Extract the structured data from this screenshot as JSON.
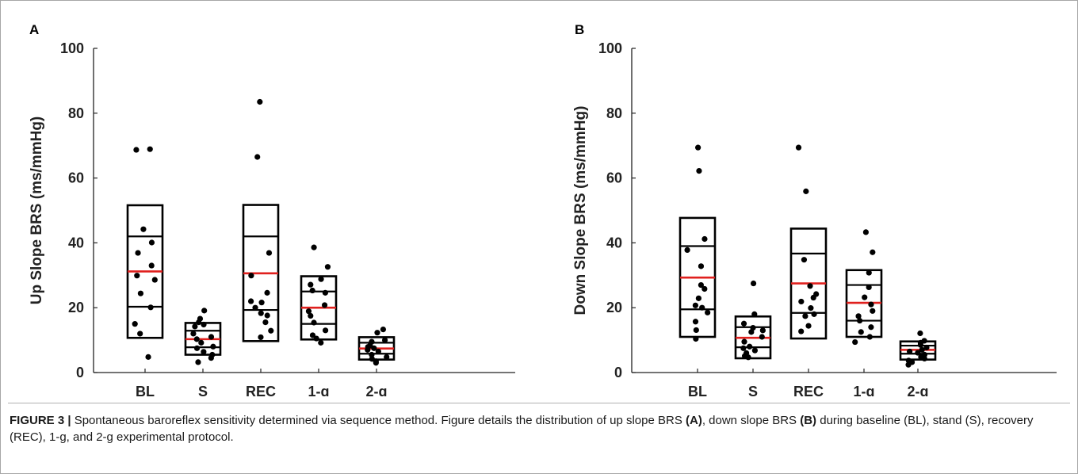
{
  "chart_data": [
    {
      "type": "scatter",
      "panel": "A",
      "ylabel": "Up Slope BRS (ms/mmHg)",
      "xlabel": "",
      "title": "",
      "ylim": [
        0,
        100
      ],
      "yticks": [
        "0",
        "20",
        "40",
        "60",
        "80",
        "100"
      ],
      "categories": [
        "BL",
        "S",
        "REC",
        "1-g",
        "2-g"
      ],
      "boxes": [
        {
          "category": "BL",
          "bottom": 10.7,
          "q1": 20.3,
          "mean": 31.2,
          "q3": 42.0,
          "top": 51.6
        },
        {
          "category": "S",
          "bottom": 5.5,
          "q1": 7.8,
          "mean": 10.3,
          "q3": 12.9,
          "top": 15.3
        },
        {
          "category": "REC",
          "bottom": 9.7,
          "q1": 19.3,
          "mean": 30.6,
          "q3": 42.0,
          "top": 51.7
        },
        {
          "category": "1-g",
          "bottom": 10.2,
          "q1": 15.0,
          "mean": 20.0,
          "q3": 25.0,
          "top": 29.7
        },
        {
          "category": "2-g",
          "bottom": 4.0,
          "q1": 5.8,
          "mean": 7.4,
          "q3": 9.2,
          "top": 10.9
        }
      ],
      "points": [
        {
          "category": "BL",
          "values": [
            68.9,
            68.7,
            44.2,
            40.1,
            36.9,
            33.0,
            29.9,
            28.6,
            24.4,
            20.1,
            15.0,
            12.0,
            4.8
          ]
        },
        {
          "category": "S",
          "values": [
            19.1,
            16.6,
            15.5,
            14.8,
            14.2,
            12.0,
            11.0,
            10.3,
            9.2,
            8.0,
            7.5,
            6.4,
            5.5,
            4.5,
            3.2
          ]
        },
        {
          "category": "REC",
          "values": [
            83.5,
            66.5,
            36.9,
            29.9,
            24.6,
            22.0,
            21.6,
            20.0,
            18.3,
            17.6,
            15.5,
            12.9,
            10.9
          ]
        },
        {
          "category": "1-g",
          "values": [
            38.6,
            32.6,
            28.8,
            27.1,
            25.3,
            24.6,
            20.8,
            18.9,
            17.5,
            15.4,
            13.0,
            11.5,
            10.5,
            9.2
          ]
        },
        {
          "category": "2-g",
          "values": [
            13.3,
            12.3,
            10.0,
            9.5,
            8.3,
            7.9,
            7.5,
            7.0,
            6.5,
            5.5,
            4.8,
            4.2,
            3.5,
            3.0
          ]
        }
      ]
    },
    {
      "type": "scatter",
      "panel": "B",
      "ylabel": "Down Slope BRS (ms/mmHg)",
      "xlabel": "",
      "title": "",
      "ylim": [
        0,
        100
      ],
      "yticks": [
        "0",
        "20",
        "40",
        "60",
        "80",
        "100"
      ],
      "categories": [
        "BL",
        "S",
        "REC",
        "1-g",
        "2-g"
      ],
      "boxes": [
        {
          "category": "BL",
          "bottom": 11.0,
          "q1": 19.5,
          "mean": 29.3,
          "q3": 39.0,
          "top": 47.7
        },
        {
          "category": "S",
          "bottom": 4.4,
          "q1": 7.8,
          "mean": 10.7,
          "q3": 14.0,
          "top": 17.3
        },
        {
          "category": "REC",
          "bottom": 10.5,
          "q1": 18.4,
          "mean": 27.5,
          "q3": 36.7,
          "top": 44.4
        },
        {
          "category": "1-g",
          "bottom": 11.0,
          "q1": 16.0,
          "mean": 21.5,
          "q3": 27.0,
          "top": 31.6
        },
        {
          "category": "2-g",
          "bottom": 4.0,
          "q1": 5.8,
          "mean": 7.0,
          "q3": 8.3,
          "top": 9.6
        }
      ],
      "points": [
        {
          "category": "BL",
          "values": [
            69.4,
            62.2,
            41.2,
            37.8,
            32.8,
            27.0,
            25.8,
            22.9,
            20.7,
            20.0,
            18.5,
            15.7,
            13.1,
            10.4
          ]
        },
        {
          "category": "S",
          "values": [
            27.5,
            18.0,
            15.1,
            13.8,
            13.0,
            12.5,
            11.0,
            9.5,
            8.0,
            7.5,
            6.8,
            6.0,
            5.1,
            4.7
          ]
        },
        {
          "category": "REC",
          "values": [
            69.4,
            55.9,
            34.8,
            26.7,
            24.2,
            23.1,
            21.9,
            19.9,
            18.0,
            17.4,
            14.4,
            12.7
          ]
        },
        {
          "category": "1-g",
          "values": [
            43.3,
            37.1,
            30.8,
            26.3,
            23.2,
            21.0,
            19.0,
            17.4,
            16.0,
            14.0,
            12.5,
            11.0,
            9.4
          ]
        },
        {
          "category": "2-g",
          "values": [
            12.1,
            9.8,
            9.2,
            8.5,
            7.7,
            7.0,
            6.5,
            6.1,
            5.5,
            4.8,
            4.3,
            3.7,
            3.2,
            2.4
          ]
        }
      ]
    }
  ],
  "caption": {
    "label": "FIGURE 3 |",
    "t1": " Spontaneous baroreflex sensitivity determined via sequence method. Figure details the distribution of up slope BRS ",
    "a": "(A)",
    "t2": ", down slope BRS ",
    "b": "(B)",
    "t3": " during baseline (BL), stand (S), recovery (REC), 1-g, and 2-g experimental protocol."
  },
  "colors": {
    "mean_line": "#e0201e",
    "box": "#000000",
    "points": "#000000",
    "axis": "#222222"
  }
}
